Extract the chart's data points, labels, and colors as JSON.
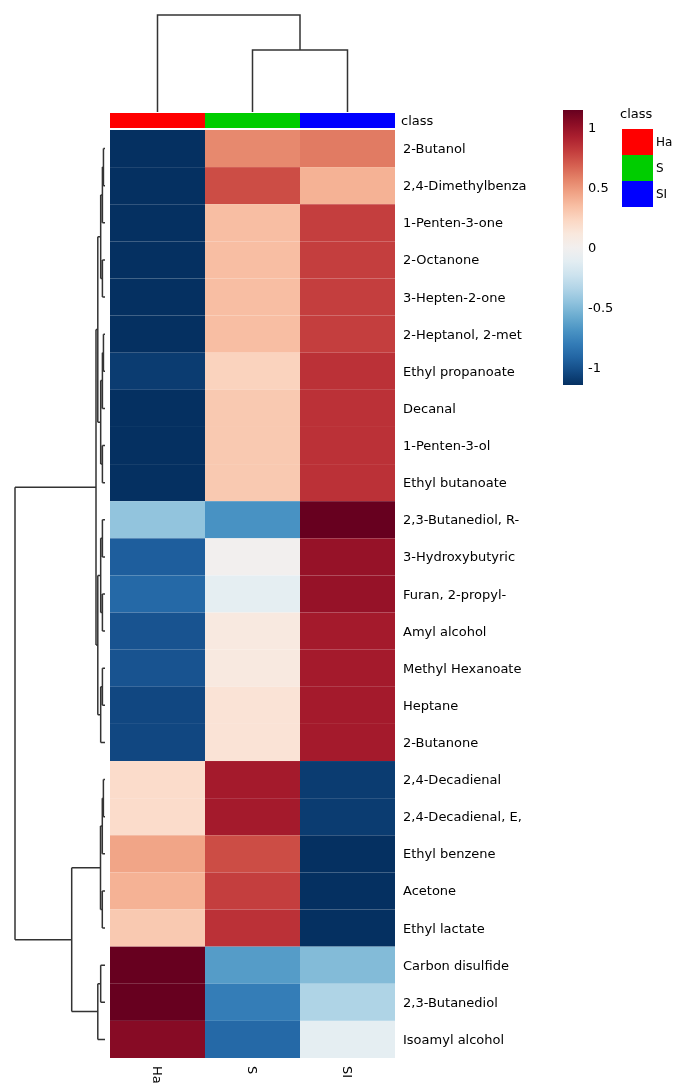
{
  "chart_data": {
    "type": "heatmap",
    "categories": [
      "Ha",
      "S",
      "SI"
    ],
    "colors": [
      "#ff0000",
      "#00cd00",
      "#0000ff"
    ],
    "legend_title": "class",
    "y_categories": [
      "2-Butanol",
      "2,4-Dimethylbenza",
      "1-Penten-3-one",
      "2-Octanone",
      "3-Hepten-2-one",
      "2-Heptanol, 2-met",
      "Ethyl propanoate",
      "Decanal",
      "1-Penten-3-ol",
      "Ethyl butanoate",
      "2,3-Butanediol, R-",
      "3-Hydroxybutyric",
      "Furan, 2-propyl-",
      "Amyl alcohol",
      "Methyl Hexanoate",
      "Heptane",
      "2-Butanone",
      "2,4-Decadienal",
      "2,4-Decadienal, E,",
      "Ethyl benzene",
      "Acetone",
      "Ethyl lactate",
      "Carbon disulfide",
      "2,3-Butanediol",
      "Isoamyl alcohol"
    ],
    "cells": [
      [
        -1.15,
        0.55,
        0.6
      ],
      [
        -1.15,
        0.75,
        0.4
      ],
      [
        -1.15,
        0.35,
        0.8
      ],
      [
        -1.15,
        0.35,
        0.8
      ],
      [
        -1.15,
        0.35,
        0.8
      ],
      [
        -1.15,
        0.35,
        0.8
      ],
      [
        -1.1,
        0.25,
        0.85
      ],
      [
        -1.15,
        0.3,
        0.85
      ],
      [
        -1.15,
        0.3,
        0.85
      ],
      [
        -1.15,
        0.3,
        0.85
      ],
      [
        -0.45,
        -0.7,
        1.15
      ],
      [
        -0.95,
        0,
        1
      ],
      [
        -0.9,
        -0.1,
        1
      ],
      [
        -1,
        0.1,
        0.95
      ],
      [
        -1,
        0.1,
        0.95
      ],
      [
        -1.05,
        0.15,
        0.95
      ],
      [
        -1.05,
        0.15,
        0.95
      ],
      [
        0.2,
        0.95,
        -1.1
      ],
      [
        0.2,
        0.95,
        -1.1
      ],
      [
        0.45,
        0.75,
        -1.15
      ],
      [
        0.4,
        0.8,
        -1.15
      ],
      [
        0.3,
        0.85,
        -1.15
      ],
      [
        1.15,
        -0.65,
        -0.5
      ],
      [
        1.15,
        -0.8,
        -0.35
      ],
      [
        1.05,
        -0.9,
        -0.1
      ]
    ],
    "clim": [
      -1.15,
      1.15
    ],
    "cticks": [
      -1,
      -0.5,
      0,
      0.5,
      1
    ]
  }
}
